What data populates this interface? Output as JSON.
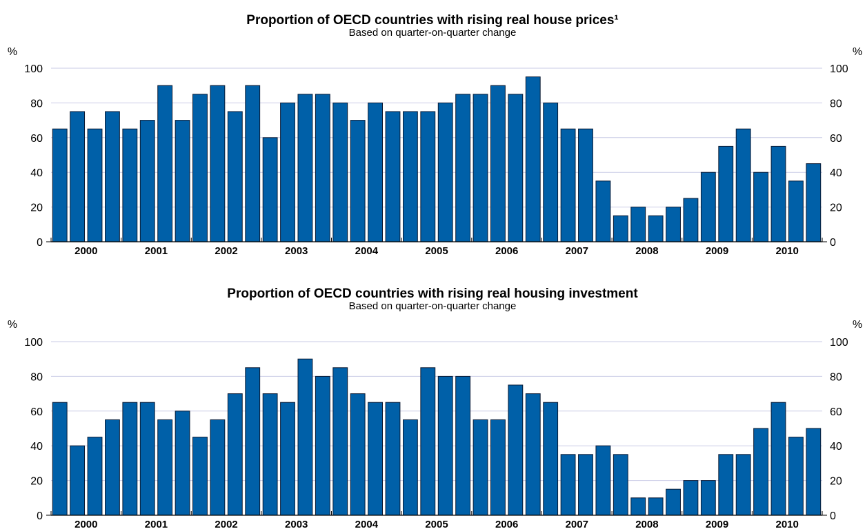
{
  "chart_data": [
    {
      "type": "bar",
      "title": "Proportion of OECD countries with rising real house prices¹",
      "subtitle": "Based on quarter-on-quarter change",
      "y_unit_left": "%",
      "y_unit_right": "%",
      "ylim": [
        0,
        100
      ],
      "y_ticks": [
        "0",
        "20",
        "40",
        "60",
        "80",
        "100"
      ],
      "grid": true,
      "x_labels": [
        "2000",
        "2001",
        "2002",
        "2003",
        "2004",
        "2005",
        "2006",
        "2007",
        "2008",
        "2009",
        "2010"
      ],
      "bar_color": "#0060A8",
      "values": [
        65,
        75,
        65,
        75,
        65,
        70,
        90,
        70,
        85,
        90,
        75,
        90,
        60,
        80,
        85,
        85,
        80,
        70,
        80,
        75,
        75,
        75,
        80,
        85,
        85,
        90,
        85,
        95,
        80,
        65,
        65,
        35,
        15,
        20,
        15,
        20,
        25,
        40,
        55,
        65,
        40,
        55,
        35,
        45
      ]
    },
    {
      "type": "bar",
      "title": "Proportion of OECD countries with rising real housing investment",
      "subtitle": "Based on quarter-on-quarter change",
      "y_unit_left": "%",
      "y_unit_right": "%",
      "ylim": [
        0,
        100
      ],
      "y_ticks": [
        "0",
        "20",
        "40",
        "60",
        "80",
        "100"
      ],
      "grid": true,
      "x_labels": [
        "2000",
        "2001",
        "2002",
        "2003",
        "2004",
        "2005",
        "2006",
        "2007",
        "2008",
        "2009",
        "2010"
      ],
      "bar_color": "#0060A8",
      "values": [
        65,
        40,
        45,
        55,
        65,
        65,
        55,
        60,
        45,
        55,
        70,
        85,
        70,
        65,
        90,
        80,
        85,
        70,
        65,
        65,
        55,
        85,
        80,
        80,
        55,
        55,
        75,
        70,
        65,
        35,
        35,
        40,
        35,
        10,
        10,
        15,
        20,
        20,
        35,
        35,
        50,
        65,
        45,
        50
      ]
    }
  ]
}
